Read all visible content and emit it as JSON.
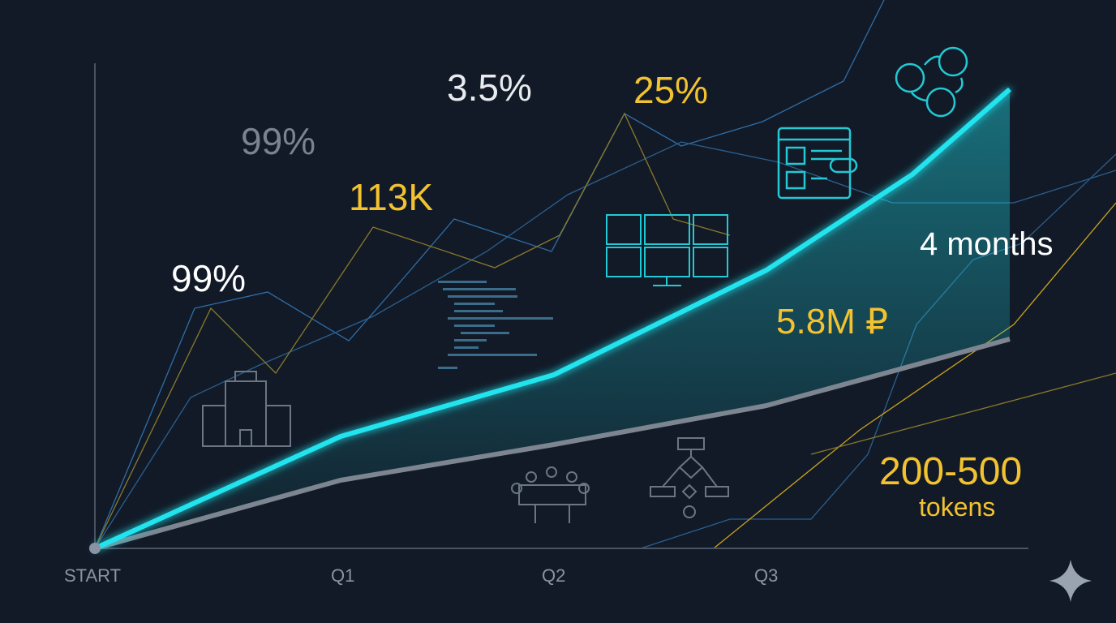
{
  "x_axis": {
    "labels": [
      "START",
      "Q1",
      "Q2",
      "Q3"
    ]
  },
  "callouts": {
    "gray_pct": "99%",
    "white_pct": "99%",
    "k_value": "113K",
    "small_pct": "3.5%",
    "quarter_pct": "25%",
    "budget": "5.8M ₽",
    "duration": "4 months",
    "token_range": "200-500",
    "token_unit": "tokens"
  }
}
